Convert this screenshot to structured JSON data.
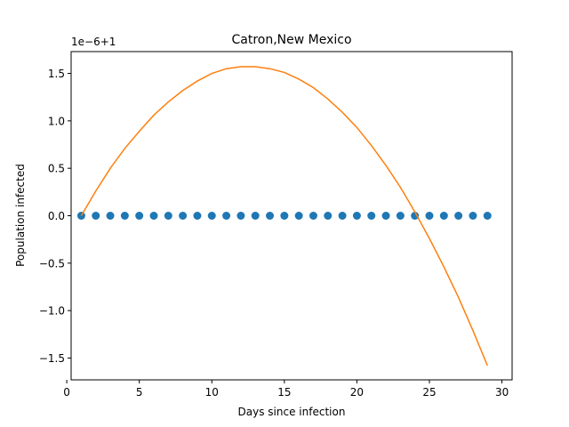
{
  "chart_data": {
    "type": "scatter",
    "title": "Catron,New Mexico",
    "xlabel": "Days since infection",
    "ylabel": "Population infected",
    "offset_label": "1e−6+1",
    "xlim": [
      0.3,
      30.7
    ],
    "ylim": [
      -1.73,
      1.73
    ],
    "grid": false,
    "legend": "none",
    "x_ticks": [
      0,
      5,
      10,
      15,
      20,
      25,
      30
    ],
    "y_ticks": [
      -1.5,
      -1.0,
      -0.5,
      0.0,
      0.5,
      1.0,
      1.5
    ],
    "x_tick_labels": [
      "0",
      "5",
      "10",
      "15",
      "20",
      "25",
      "30"
    ],
    "y_tick_labels": [
      "−1.5",
      "−1.0",
      "−0.5",
      "0.0",
      "0.5",
      "1.0",
      "1.5"
    ],
    "series": [
      {
        "kind": "scatter",
        "color": "#1f77b4",
        "x": [
          1,
          2,
          3,
          4,
          5,
          6,
          7,
          8,
          9,
          10,
          11,
          12,
          13,
          14,
          15,
          16,
          17,
          18,
          19,
          20,
          21,
          22,
          23,
          24,
          25,
          26,
          27,
          28,
          29
        ],
        "y": [
          0,
          0,
          0,
          0,
          0,
          0,
          0,
          0,
          0,
          0,
          0,
          0,
          0,
          0,
          0,
          0,
          0,
          0,
          0,
          0,
          0,
          0,
          0,
          0,
          0,
          0,
          0,
          0,
          0
        ]
      },
      {
        "kind": "line",
        "color": "#ff7f0e",
        "x": [
          1,
          2,
          3,
          4,
          5,
          6,
          7,
          8,
          9,
          10,
          11,
          12,
          13,
          14,
          15,
          16,
          17,
          18,
          19,
          20,
          21,
          22,
          23,
          24,
          25,
          26,
          27,
          28,
          29
        ],
        "y": [
          0.0,
          0.26,
          0.5,
          0.71,
          0.89,
          1.06,
          1.2,
          1.32,
          1.42,
          1.5,
          1.55,
          1.57,
          1.57,
          1.55,
          1.51,
          1.44,
          1.35,
          1.23,
          1.09,
          0.93,
          0.74,
          0.53,
          0.3,
          0.04,
          -0.24,
          -0.54,
          -0.86,
          -1.21,
          -1.58
        ]
      }
    ]
  }
}
